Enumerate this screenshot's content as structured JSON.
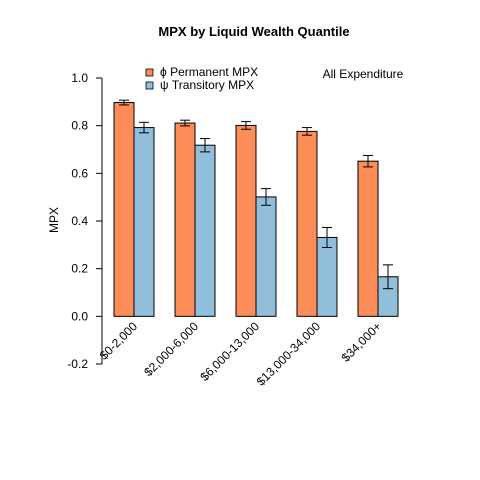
{
  "chart_data": {
    "type": "bar",
    "title": "MPX by Liquid Wealth Quantile",
    "annotation": "All Expenditure",
    "xlabel": "",
    "ylabel": "MPX",
    "ylim": [
      -0.2,
      1.0
    ],
    "yticks": [
      "-0.2",
      "0.0",
      "0.2",
      "0.4",
      "0.6",
      "0.8",
      "1.0"
    ],
    "categories": [
      "$0-2,000",
      "$2,000-6,000",
      "$6,000-13,000",
      "$13,000-34,000",
      "$34,000+"
    ],
    "legend_position": "top-left",
    "grid": false,
    "series": [
      {
        "name": "Permanent MPX",
        "symbol": "ϕ",
        "color": "#fc8d59",
        "values": [
          0.897,
          0.811,
          0.801,
          0.776,
          0.651
        ],
        "error": [
          0.01,
          0.012,
          0.016,
          0.016,
          0.024
        ]
      },
      {
        "name": "Transitory MPX",
        "symbol": "ψ",
        "color": "#91bfdb",
        "values": [
          0.792,
          0.718,
          0.501,
          0.331,
          0.166
        ],
        "error": [
          0.022,
          0.028,
          0.035,
          0.042,
          0.05
        ]
      }
    ]
  }
}
